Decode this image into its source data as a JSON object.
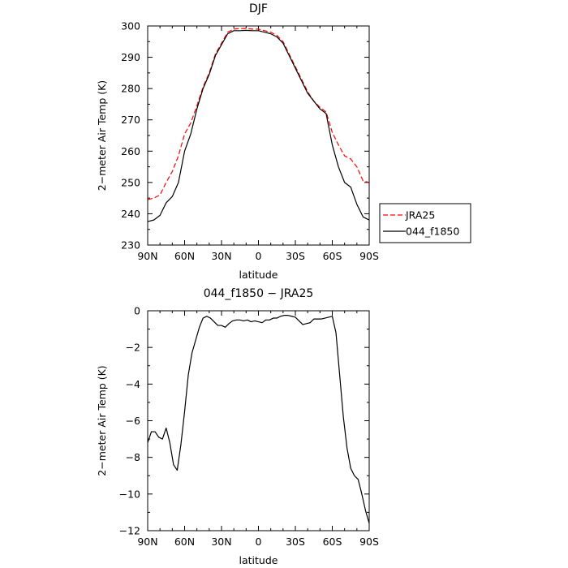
{
  "chart_data": [
    {
      "type": "line",
      "title": "DJF",
      "xlabel": "latitude",
      "ylabel": "2−meter Air Temp (K)",
      "xlim": [
        90,
        -90
      ],
      "ylim": [
        230,
        300
      ],
      "xticks": [
        90,
        60,
        30,
        0,
        -30,
        -60,
        -90
      ],
      "xtick_labels": [
        "90N",
        "60N",
        "30N",
        "0",
        "30S",
        "60S",
        "90S"
      ],
      "yticks": [
        230,
        240,
        250,
        260,
        270,
        280,
        290,
        300
      ],
      "ytick_labels": [
        "230",
        "240",
        "250",
        "260",
        "270",
        "280",
        "290",
        "300"
      ],
      "grid": false,
      "legend": "right",
      "series": [
        {
          "name": "JRA25",
          "color": "#ff0000",
          "dash": "dashed",
          "x": [
            90,
            85,
            80,
            75,
            70,
            65,
            60,
            55,
            50,
            45,
            40,
            35,
            30,
            25,
            20,
            15,
            10,
            5,
            0,
            -5,
            -10,
            -15,
            -20,
            -25,
            -30,
            -35,
            -40,
            -45,
            -50,
            -55,
            -60,
            -65,
            -70,
            -75,
            -80,
            -85,
            -90
          ],
          "y": [
            244.5,
            245,
            246,
            250,
            253.5,
            258.5,
            265.5,
            269,
            274.5,
            280.5,
            285,
            291,
            294.5,
            298,
            299,
            299.2,
            299.2,
            299,
            299,
            298.5,
            298,
            297,
            295,
            291,
            287,
            283,
            279,
            276,
            274,
            272.5,
            266,
            262,
            258.5,
            257.5,
            255,
            250.5,
            250
          ]
        },
        {
          "name": "044_f1850",
          "color": "#000000",
          "dash": "solid",
          "x": [
            90,
            85,
            80,
            75,
            70,
            65,
            60,
            55,
            50,
            45,
            40,
            35,
            30,
            25,
            20,
            15,
            10,
            5,
            0,
            -5,
            -10,
            -15,
            -20,
            -25,
            -30,
            -35,
            -40,
            -45,
            -50,
            -55,
            -60,
            -65,
            -70,
            -75,
            -80,
            -85,
            -90
          ],
          "y": [
            237.5,
            238,
            239.5,
            243.5,
            245.5,
            250,
            260,
            265.5,
            273.5,
            280,
            284.5,
            290.5,
            294,
            297.5,
            298.5,
            298.5,
            298.6,
            298.5,
            298.5,
            298,
            297.5,
            296.5,
            294.5,
            290.5,
            286.5,
            282.5,
            278.5,
            276,
            273.5,
            272,
            262,
            255,
            250,
            248.5,
            243,
            239,
            238
          ]
        }
      ]
    },
    {
      "type": "line",
      "title": "044_f1850 − JRA25",
      "xlabel": "latitude",
      "ylabel": "2−meter Air Temp (K)",
      "xlim": [
        90,
        -90
      ],
      "ylim": [
        -12,
        0
      ],
      "xticks": [
        90,
        60,
        30,
        0,
        -30,
        -60,
        -90
      ],
      "xtick_labels": [
        "90N",
        "60N",
        "30N",
        "0",
        "30S",
        "60S",
        "90S"
      ],
      "yticks": [
        0,
        -2,
        -4,
        -6,
        -8,
        -10,
        -12
      ],
      "ytick_labels": [
        "0",
        "−2",
        "−4",
        "−6",
        "−8",
        "−10",
        "−12"
      ],
      "grid": false,
      "series": [
        {
          "color": "#000000",
          "dash": "solid",
          "x": [
            90,
            87,
            84,
            81,
            78,
            75,
            72,
            69,
            66,
            63,
            60,
            57,
            54,
            51,
            48,
            45,
            42,
            39,
            36,
            33,
            30,
            27,
            24,
            21,
            18,
            15,
            12,
            9,
            6,
            3,
            0,
            -3,
            -6,
            -9,
            -12,
            -15,
            -18,
            -21,
            -24,
            -27,
            -30,
            -33,
            -36,
            -39,
            -42,
            -45,
            -48,
            -51,
            -54,
            -57,
            -60,
            -63,
            -66,
            -69,
            -72,
            -75,
            -78,
            -81,
            -84,
            -87,
            -90
          ],
          "y": [
            -7.2,
            -6.6,
            -6.6,
            -6.9,
            -7.0,
            -6.4,
            -7.2,
            -8.4,
            -8.7,
            -7.3,
            -5.5,
            -3.5,
            -2.3,
            -1.6,
            -0.9,
            -0.4,
            -0.3,
            -0.4,
            -0.6,
            -0.8,
            -0.8,
            -0.9,
            -0.7,
            -0.55,
            -0.5,
            -0.5,
            -0.55,
            -0.5,
            -0.6,
            -0.55,
            -0.6,
            -0.65,
            -0.5,
            -0.5,
            -0.4,
            -0.4,
            -0.3,
            -0.25,
            -0.25,
            -0.3,
            -0.35,
            -0.55,
            -0.75,
            -0.7,
            -0.65,
            -0.45,
            -0.45,
            -0.45,
            -0.4,
            -0.35,
            -0.3,
            -1.2,
            -3.5,
            -5.8,
            -7.5,
            -8.6,
            -9.0,
            -9.2,
            -10.0,
            -10.9,
            -11.6
          ]
        }
      ]
    }
  ]
}
